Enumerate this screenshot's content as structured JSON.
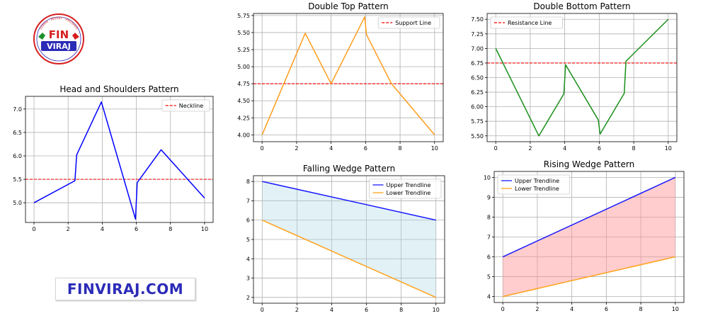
{
  "brand": {
    "logo_top": "FIN",
    "logo_bottom": "VIRAJ",
    "logo_ring": "LEARN · INVEST · PROSPER",
    "url_text": "FINVIRAJ.COM",
    "colors": {
      "url": "#2b2bb8",
      "logo_red": "#d62020",
      "logo_green": "#1a8f2a",
      "logo_blue": "#2b2bb8"
    }
  },
  "chart_data": [
    {
      "id": "head-shoulders",
      "type": "line",
      "title": "Head and Shoulders Pattern",
      "xlim": [
        -0.5,
        10.5
      ],
      "ylim": [
        4.58,
        7.27
      ],
      "xticks": [
        0,
        2,
        4,
        6,
        8,
        10
      ],
      "yticks": [
        5.0,
        5.5,
        6.0,
        6.5,
        7.0
      ],
      "ytick_labels": [
        "5.0",
        "5.5",
        "6.0",
        "6.5",
        "7.0"
      ],
      "grid": true,
      "legend": "top-right",
      "series": [
        {
          "x": [
            0,
            2.4,
            2.5,
            3.95,
            5.95,
            6.05,
            7.45,
            10
          ],
          "y": [
            5.0,
            5.47,
            6.02,
            7.15,
            4.65,
            5.43,
            6.13,
            5.1
          ],
          "color": "#0000ff",
          "style": "solid"
        }
      ],
      "hlines": [
        {
          "y": 5.5,
          "name": "Neckline",
          "color": "#ff0000"
        }
      ]
    },
    {
      "id": "double-top",
      "type": "line",
      "title": "Double Top Pattern",
      "xlim": [
        -0.5,
        10.5
      ],
      "ylim": [
        3.9,
        5.78
      ],
      "xticks": [
        0,
        2,
        4,
        6,
        8,
        10
      ],
      "yticks": [
        4.0,
        4.25,
        4.5,
        4.75,
        5.0,
        5.25,
        5.5,
        5.75
      ],
      "ytick_labels": [
        "4.00",
        "4.25",
        "4.50",
        "4.75",
        "5.00",
        "5.25",
        "5.50",
        "5.75"
      ],
      "grid": true,
      "legend": "top-right",
      "series": [
        {
          "x": [
            0,
            2.5,
            4,
            5.95,
            6.05,
            7.5,
            10
          ],
          "y": [
            4.0,
            5.49,
            4.75,
            5.73,
            5.47,
            4.75,
            4.0
          ],
          "color": "#ff9c1a",
          "style": "solid"
        }
      ],
      "hlines": [
        {
          "y": 4.75,
          "name": "Support Line",
          "color": "#ff0000"
        }
      ]
    },
    {
      "id": "double-bottom",
      "type": "line",
      "title": "Double Bottom Pattern",
      "xlim": [
        -0.5,
        10.5
      ],
      "ylim": [
        5.4,
        7.6
      ],
      "xticks": [
        0,
        2,
        4,
        6,
        8,
        10
      ],
      "yticks": [
        5.5,
        5.75,
        6.0,
        6.25,
        6.5,
        6.75,
        7.0,
        7.25,
        7.5
      ],
      "ytick_labels": [
        "5.50",
        "5.75",
        "6.00",
        "6.25",
        "6.50",
        "6.75",
        "7.00",
        "7.25",
        "7.50"
      ],
      "grid": true,
      "legend": "top-left",
      "series": [
        {
          "x": [
            0,
            2.5,
            3.95,
            4.05,
            5.95,
            6.05,
            7.45,
            7.55,
            10
          ],
          "y": [
            7.0,
            5.5,
            6.22,
            6.72,
            5.77,
            5.53,
            6.23,
            6.78,
            7.5
          ],
          "color": "#1a8f1a",
          "style": "solid"
        }
      ],
      "hlines": [
        {
          "y": 6.75,
          "name": "Resistance Line",
          "color": "#ff0000"
        }
      ]
    },
    {
      "id": "falling-wedge",
      "type": "area",
      "title": "Falling Wedge Pattern",
      "xlim": [
        -0.5,
        10.5
      ],
      "ylim": [
        1.7,
        8.3
      ],
      "xticks": [
        0,
        2,
        4,
        6,
        8,
        10
      ],
      "yticks": [
        2,
        3,
        4,
        5,
        6,
        7,
        8
      ],
      "ytick_labels": [
        "2",
        "3",
        "4",
        "5",
        "6",
        "7",
        "8"
      ],
      "grid": true,
      "legend": "top-right",
      "series": [
        {
          "name": "Upper Trendline",
          "x": [
            0,
            10
          ],
          "y": [
            8,
            6
          ],
          "color": "#1a1aff"
        },
        {
          "name": "Lower Trendline",
          "x": [
            0,
            10
          ],
          "y": [
            6,
            2
          ],
          "color": "#ffa31a"
        }
      ],
      "fill": {
        "color": "#add8e6",
        "opacity": 0.35
      }
    },
    {
      "id": "rising-wedge",
      "type": "area",
      "title": "Rising Wedge Pattern",
      "xlim": [
        -0.5,
        10.5
      ],
      "ylim": [
        3.7,
        10.3
      ],
      "xticks": [
        0,
        2,
        4,
        6,
        8,
        10
      ],
      "yticks": [
        4,
        5,
        6,
        7,
        8,
        9,
        10
      ],
      "ytick_labels": [
        "4",
        "5",
        "6",
        "7",
        "8",
        "9",
        "10"
      ],
      "grid": true,
      "legend": "top-left",
      "series": [
        {
          "name": "Upper Trendline",
          "x": [
            0,
            10
          ],
          "y": [
            6,
            10
          ],
          "color": "#1a1aff"
        },
        {
          "name": "Lower Trendline",
          "x": [
            0,
            10
          ],
          "y": [
            4,
            6
          ],
          "color": "#ffa31a"
        }
      ],
      "fill": {
        "color": "#ff9090",
        "opacity": 0.45
      }
    }
  ]
}
